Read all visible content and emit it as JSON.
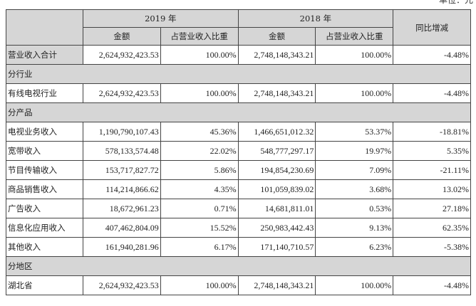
{
  "unit_label": "单位：元",
  "header": {
    "year_2019": "2019 年",
    "year_2018": "2018 年",
    "amount": "金额",
    "share": "占营业收入比重",
    "yoy": "同比增减"
  },
  "total": {
    "label": "营业收入合计",
    "amt2019": "2,624,932,423.53",
    "pct2019": "100.00%",
    "amt2018": "2,748,148,343.21",
    "pct2018": "100.00%",
    "yoy": "-4.48%"
  },
  "sections": [
    {
      "title": "分行业",
      "rows": [
        {
          "label": "有线电视行业",
          "amt2019": "2,624,932,423.53",
          "pct2019": "100.00%",
          "amt2018": "2,748,148,343.21",
          "pct2018": "100.00%",
          "yoy": "-4.48%"
        }
      ]
    },
    {
      "title": "分产品",
      "rows": [
        {
          "label": "电视业务收入",
          "amt2019": "1,190,790,107.43",
          "pct2019": "45.36%",
          "amt2018": "1,466,651,012.32",
          "pct2018": "53.37%",
          "yoy": "-18.81%"
        },
        {
          "label": "宽带收入",
          "amt2019": "578,133,574.48",
          "pct2019": "22.02%",
          "amt2018": "548,777,297.17",
          "pct2018": "19.97%",
          "yoy": "5.35%"
        },
        {
          "label": "节目传输收入",
          "amt2019": "153,717,827.72",
          "pct2019": "5.86%",
          "amt2018": "194,854,230.69",
          "pct2018": "7.09%",
          "yoy": "-21.11%"
        },
        {
          "label": "商品销售收入",
          "amt2019": "114,214,866.62",
          "pct2019": "4.35%",
          "amt2018": "101,059,839.02",
          "pct2018": "3.68%",
          "yoy": "13.02%"
        },
        {
          "label": "广告收入",
          "amt2019": "18,672,961.23",
          "pct2019": "0.71%",
          "amt2018": "14,681,811.01",
          "pct2018": "0.53%",
          "yoy": "27.18%"
        },
        {
          "label": "信息化应用收入",
          "amt2019": "407,462,804.09",
          "pct2019": "15.52%",
          "amt2018": "250,983,442.43",
          "pct2018": "9.13%",
          "yoy": "62.35%"
        },
        {
          "label": "其他收入",
          "amt2019": "161,940,281.96",
          "pct2019": "6.17%",
          "amt2018": "171,140,710.57",
          "pct2018": "6.23%",
          "yoy": "-5.38%"
        }
      ]
    },
    {
      "title": "分地区",
      "rows": [
        {
          "label": "湖北省",
          "amt2019": "2,624,932,423.53",
          "pct2019": "100.00%",
          "amt2018": "2,748,148,343.21",
          "pct2018": "100.00%",
          "yoy": "-4.48%"
        }
      ]
    }
  ]
}
